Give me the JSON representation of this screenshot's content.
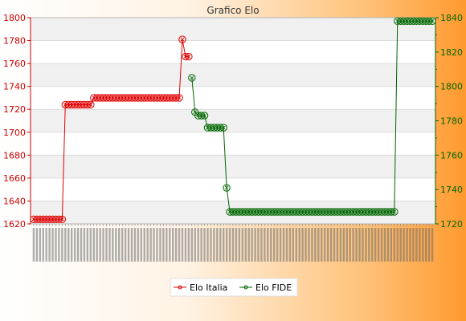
{
  "chart_data": {
    "type": "line",
    "title": "Grafico Elo",
    "xlabel": "",
    "left_axis": {
      "ylim": [
        1620,
        1800
      ],
      "ticks": [
        1620,
        1640,
        1660,
        1680,
        1700,
        1720,
        1740,
        1760,
        1780,
        1800
      ],
      "color": "#cc0000"
    },
    "right_axis": {
      "ylim": [
        1720,
        1840
      ],
      "ticks": [
        1720,
        1740,
        1760,
        1780,
        1800,
        1820,
        1840
      ],
      "color": "#006600"
    },
    "x_tick_labels_note": "dense rotated date labels, illegible",
    "legend_placement": "bottom-center",
    "grid": true,
    "series": [
      {
        "name": "Elo Italia",
        "axis": "left",
        "color": "#e00000",
        "points": [
          [
            1,
            1624
          ],
          [
            2,
            1624
          ],
          [
            3,
            1624
          ],
          [
            4,
            1624
          ],
          [
            5,
            1624
          ],
          [
            6,
            1624
          ],
          [
            7,
            1624
          ],
          [
            8,
            1624
          ],
          [
            9,
            1624
          ],
          [
            10,
            1624
          ],
          [
            11,
            1724
          ],
          [
            12,
            1724
          ],
          [
            13,
            1724
          ],
          [
            14,
            1724
          ],
          [
            15,
            1724
          ],
          [
            16,
            1724
          ],
          [
            17,
            1724
          ],
          [
            18,
            1724
          ],
          [
            19,
            1724
          ],
          [
            20,
            1730
          ],
          [
            21,
            1730
          ],
          [
            22,
            1730
          ],
          [
            23,
            1730
          ],
          [
            24,
            1730
          ],
          [
            25,
            1730
          ],
          [
            26,
            1730
          ],
          [
            27,
            1730
          ],
          [
            28,
            1730
          ],
          [
            29,
            1730
          ],
          [
            30,
            1730
          ],
          [
            31,
            1730
          ],
          [
            32,
            1730
          ],
          [
            33,
            1730
          ],
          [
            34,
            1730
          ],
          [
            35,
            1730
          ],
          [
            36,
            1730
          ],
          [
            37,
            1730
          ],
          [
            38,
            1730
          ],
          [
            39,
            1730
          ],
          [
            40,
            1730
          ],
          [
            41,
            1730
          ],
          [
            42,
            1730
          ],
          [
            43,
            1730
          ],
          [
            44,
            1730
          ],
          [
            45,
            1730
          ],
          [
            46,
            1730
          ],
          [
            47,
            1730
          ],
          [
            48,
            1781
          ],
          [
            49,
            1766
          ],
          [
            50,
            1766
          ]
        ]
      },
      {
        "name": "Elo FIDE",
        "axis": "right",
        "color": "#006600",
        "points": [
          [
            51,
            1805
          ],
          [
            52,
            1785
          ],
          [
            53,
            1783
          ],
          [
            54,
            1783
          ],
          [
            55,
            1783
          ],
          [
            56,
            1776
          ],
          [
            57,
            1776
          ],
          [
            58,
            1776
          ],
          [
            59,
            1776
          ],
          [
            60,
            1776
          ],
          [
            61,
            1776
          ],
          [
            62,
            1741
          ],
          [
            63,
            1727
          ],
          [
            64,
            1727
          ],
          [
            65,
            1727
          ],
          [
            66,
            1727
          ],
          [
            67,
            1727
          ],
          [
            68,
            1727
          ],
          [
            69,
            1727
          ],
          [
            70,
            1727
          ],
          [
            71,
            1727
          ],
          [
            72,
            1727
          ],
          [
            73,
            1727
          ],
          [
            74,
            1727
          ],
          [
            75,
            1727
          ],
          [
            76,
            1727
          ],
          [
            77,
            1727
          ],
          [
            78,
            1727
          ],
          [
            79,
            1727
          ],
          [
            80,
            1727
          ],
          [
            81,
            1727
          ],
          [
            82,
            1727
          ],
          [
            83,
            1727
          ],
          [
            84,
            1727
          ],
          [
            85,
            1727
          ],
          [
            86,
            1727
          ],
          [
            87,
            1727
          ],
          [
            88,
            1727
          ],
          [
            89,
            1727
          ],
          [
            90,
            1727
          ],
          [
            91,
            1727
          ],
          [
            92,
            1727
          ],
          [
            93,
            1727
          ],
          [
            94,
            1727
          ],
          [
            95,
            1727
          ],
          [
            96,
            1727
          ],
          [
            97,
            1727
          ],
          [
            98,
            1727
          ],
          [
            99,
            1727
          ],
          [
            100,
            1727
          ],
          [
            101,
            1727
          ],
          [
            102,
            1727
          ],
          [
            103,
            1727
          ],
          [
            104,
            1727
          ],
          [
            105,
            1727
          ],
          [
            106,
            1727
          ],
          [
            107,
            1727
          ],
          [
            108,
            1727
          ],
          [
            109,
            1727
          ],
          [
            110,
            1727
          ],
          [
            111,
            1727
          ],
          [
            112,
            1727
          ],
          [
            113,
            1727
          ],
          [
            114,
            1727
          ],
          [
            115,
            1727
          ],
          [
            116,
            1838
          ],
          [
            117,
            1838
          ],
          [
            118,
            1838
          ],
          [
            119,
            1838
          ],
          [
            120,
            1838
          ],
          [
            121,
            1838
          ],
          [
            122,
            1838
          ],
          [
            123,
            1838
          ],
          [
            124,
            1838
          ],
          [
            125,
            1838
          ],
          [
            126,
            1838
          ],
          [
            127,
            1838
          ]
        ]
      }
    ],
    "xrange": [
      0,
      128
    ]
  }
}
